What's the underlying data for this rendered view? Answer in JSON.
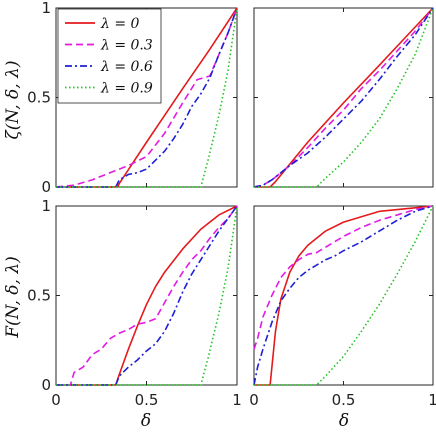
{
  "chart_data": [
    {
      "type": "line",
      "panel": "top-left",
      "ylabel": "ζ(N, δ, λ)",
      "xlabel": "",
      "xlim": [
        0,
        1
      ],
      "ylim": [
        0,
        1
      ],
      "xticks": [],
      "yticks": [
        "0",
        "0.5",
        "1"
      ],
      "legend": {
        "placement": "top-left",
        "entries": [
          "λ = 0",
          "λ = 0.3",
          "λ = 0.6",
          "λ = 0.9"
        ]
      },
      "series": [
        {
          "name": "λ = 0",
          "color": "#e41a1c",
          "style": "solid",
          "points": [
            [
              0,
              0
            ],
            [
              0.34,
              0
            ],
            [
              0.35,
              0.02
            ],
            [
              0.5,
              0.25
            ],
            [
              0.7,
              0.55
            ],
            [
              0.85,
              0.77
            ],
            [
              1,
              1
            ]
          ]
        },
        {
          "name": "λ = 0.3",
          "color": "#e31ae3",
          "style": "dashed",
          "points": [
            [
              0,
              0
            ],
            [
              0.1,
              0.01
            ],
            [
              0.2,
              0.04
            ],
            [
              0.3,
              0.08
            ],
            [
              0.4,
              0.12
            ],
            [
              0.5,
              0.17
            ],
            [
              0.6,
              0.3
            ],
            [
              0.7,
              0.47
            ],
            [
              0.78,
              0.6
            ],
            [
              0.85,
              0.62
            ],
            [
              0.9,
              0.74
            ],
            [
              0.95,
              0.86
            ],
            [
              1,
              1
            ]
          ]
        },
        {
          "name": "λ = 0.6",
          "color": "#1f1fd6",
          "style": "dashdot",
          "points": [
            [
              0,
              0
            ],
            [
              0.33,
              0
            ],
            [
              0.35,
              0.04
            ],
            [
              0.4,
              0.07
            ],
            [
              0.45,
              0.08
            ],
            [
              0.5,
              0.1
            ],
            [
              0.55,
              0.15
            ],
            [
              0.6,
              0.2
            ],
            [
              0.65,
              0.27
            ],
            [
              0.7,
              0.35
            ],
            [
              0.75,
              0.45
            ],
            [
              0.8,
              0.52
            ],
            [
              0.85,
              0.61
            ],
            [
              0.9,
              0.74
            ],
            [
              0.95,
              0.86
            ],
            [
              1,
              1
            ]
          ]
        },
        {
          "name": "λ = 0.9",
          "color": "#22c422",
          "style": "dotted",
          "points": [
            [
              0,
              0
            ],
            [
              0.8,
              0
            ],
            [
              0.84,
              0.15
            ],
            [
              0.9,
              0.4
            ],
            [
              0.95,
              0.65
            ],
            [
              1,
              1
            ]
          ]
        }
      ]
    },
    {
      "type": "line",
      "panel": "top-right",
      "xlim": [
        0,
        1
      ],
      "ylim": [
        0,
        1
      ],
      "series": [
        {
          "name": "λ = 0",
          "color": "#e41a1c",
          "style": "solid",
          "points": [
            [
              0,
              0
            ],
            [
              0.09,
              0
            ],
            [
              0.12,
              0.03
            ],
            [
              0.3,
              0.25
            ],
            [
              0.5,
              0.47
            ],
            [
              0.7,
              0.68
            ],
            [
              0.85,
              0.84
            ],
            [
              1,
              1
            ]
          ]
        },
        {
          "name": "λ = 0.3",
          "color": "#e31ae3",
          "style": "dashed",
          "points": [
            [
              0,
              0
            ],
            [
              0.05,
              0.01
            ],
            [
              0.1,
              0.04
            ],
            [
              0.2,
              0.12
            ],
            [
              0.3,
              0.22
            ],
            [
              0.4,
              0.33
            ],
            [
              0.5,
              0.43
            ],
            [
              0.6,
              0.55
            ],
            [
              0.7,
              0.65
            ],
            [
              0.8,
              0.76
            ],
            [
              0.9,
              0.87
            ],
            [
              1,
              1
            ]
          ]
        },
        {
          "name": "λ = 0.6",
          "color": "#1f1fd6",
          "style": "dashdot",
          "points": [
            [
              0,
              0
            ],
            [
              0.05,
              0.01
            ],
            [
              0.1,
              0.04
            ],
            [
              0.2,
              0.12
            ],
            [
              0.3,
              0.19
            ],
            [
              0.4,
              0.28
            ],
            [
              0.5,
              0.38
            ],
            [
              0.6,
              0.48
            ],
            [
              0.7,
              0.6
            ],
            [
              0.8,
              0.73
            ],
            [
              0.9,
              0.85
            ],
            [
              1,
              1
            ]
          ]
        },
        {
          "name": "λ = 0.9",
          "color": "#22c422",
          "style": "dotted",
          "points": [
            [
              0,
              0
            ],
            [
              0.35,
              0
            ],
            [
              0.4,
              0.05
            ],
            [
              0.5,
              0.14
            ],
            [
              0.6,
              0.25
            ],
            [
              0.7,
              0.38
            ],
            [
              0.8,
              0.55
            ],
            [
              0.9,
              0.74
            ],
            [
              1,
              1
            ]
          ]
        }
      ]
    },
    {
      "type": "line",
      "panel": "bottom-left",
      "ylabel": "F(N, δ, λ)",
      "xlabel": "δ",
      "xlim": [
        0,
        1
      ],
      "ylim": [
        0,
        1
      ],
      "xticks": [
        "0",
        "0.5",
        "1"
      ],
      "yticks": [
        "0",
        "0.5",
        "1"
      ],
      "series": [
        {
          "name": "λ = 0",
          "color": "#e41a1c",
          "style": "solid",
          "points": [
            [
              0,
              0
            ],
            [
              0.33,
              0
            ],
            [
              0.35,
              0.06
            ],
            [
              0.4,
              0.2
            ],
            [
              0.45,
              0.33
            ],
            [
              0.5,
              0.45
            ],
            [
              0.55,
              0.55
            ],
            [
              0.6,
              0.63
            ],
            [
              0.7,
              0.76
            ],
            [
              0.8,
              0.87
            ],
            [
              0.9,
              0.95
            ],
            [
              1,
              1
            ]
          ]
        },
        {
          "name": "λ = 0.3",
          "color": "#e31ae3",
          "style": "dashed",
          "points": [
            [
              0,
              0
            ],
            [
              0.08,
              0
            ],
            [
              0.1,
              0.07
            ],
            [
              0.15,
              0.1
            ],
            [
              0.2,
              0.17
            ],
            [
              0.25,
              0.2
            ],
            [
              0.3,
              0.26
            ],
            [
              0.35,
              0.29
            ],
            [
              0.4,
              0.31
            ],
            [
              0.45,
              0.34
            ],
            [
              0.5,
              0.35
            ],
            [
              0.55,
              0.37
            ],
            [
              0.6,
              0.46
            ],
            [
              0.65,
              0.55
            ],
            [
              0.7,
              0.63
            ],
            [
              0.75,
              0.7
            ],
            [
              0.8,
              0.75
            ],
            [
              0.85,
              0.82
            ],
            [
              0.9,
              0.88
            ],
            [
              0.95,
              0.93
            ],
            [
              1,
              1
            ]
          ]
        },
        {
          "name": "λ = 0.6",
          "color": "#1f1fd6",
          "style": "dashdot",
          "points": [
            [
              0,
              0
            ],
            [
              0.33,
              0
            ],
            [
              0.35,
              0.05
            ],
            [
              0.4,
              0.1
            ],
            [
              0.45,
              0.14
            ],
            [
              0.5,
              0.19
            ],
            [
              0.55,
              0.23
            ],
            [
              0.6,
              0.3
            ],
            [
              0.65,
              0.4
            ],
            [
              0.7,
              0.52
            ],
            [
              0.75,
              0.62
            ],
            [
              0.8,
              0.7
            ],
            [
              0.85,
              0.78
            ],
            [
              0.9,
              0.86
            ],
            [
              0.95,
              0.93
            ],
            [
              1,
              1
            ]
          ]
        },
        {
          "name": "λ = 0.9",
          "color": "#22c422",
          "style": "dotted",
          "points": [
            [
              0,
              0
            ],
            [
              0.8,
              0
            ],
            [
              0.84,
              0.15
            ],
            [
              0.9,
              0.4
            ],
            [
              0.95,
              0.65
            ],
            [
              1,
              1
            ]
          ]
        }
      ]
    },
    {
      "type": "line",
      "panel": "bottom-right",
      "xlabel": "δ",
      "xlim": [
        0,
        1
      ],
      "ylim": [
        0,
        1
      ],
      "xticks": [
        "0",
        "0.5",
        "1"
      ],
      "yticks": [],
      "series": [
        {
          "name": "λ = 0",
          "color": "#e41a1c",
          "style": "solid",
          "points": [
            [
              0,
              0
            ],
            [
              0.09,
              0
            ],
            [
              0.1,
              0.1
            ],
            [
              0.12,
              0.3
            ],
            [
              0.15,
              0.48
            ],
            [
              0.2,
              0.63
            ],
            [
              0.25,
              0.72
            ],
            [
              0.3,
              0.78
            ],
            [
              0.4,
              0.86
            ],
            [
              0.5,
              0.91
            ],
            [
              0.6,
              0.94
            ],
            [
              0.7,
              0.97
            ],
            [
              0.8,
              0.98
            ],
            [
              0.9,
              0.99
            ],
            [
              1,
              1
            ]
          ]
        },
        {
          "name": "λ = 0.3",
          "color": "#e31ae3",
          "style": "dashed",
          "points": [
            [
              0,
              0.2
            ],
            [
              0.02,
              0.26
            ],
            [
              0.05,
              0.38
            ],
            [
              0.1,
              0.5
            ],
            [
              0.15,
              0.6
            ],
            [
              0.2,
              0.66
            ],
            [
              0.25,
              0.7
            ],
            [
              0.3,
              0.73
            ],
            [
              0.35,
              0.74
            ],
            [
              0.4,
              0.77
            ],
            [
              0.45,
              0.8
            ],
            [
              0.5,
              0.83
            ],
            [
              0.6,
              0.88
            ],
            [
              0.7,
              0.92
            ],
            [
              0.8,
              0.95
            ],
            [
              0.9,
              0.98
            ],
            [
              1,
              1
            ]
          ]
        },
        {
          "name": "λ = 0.6",
          "color": "#1f1fd6",
          "style": "dashdot",
          "points": [
            [
              0,
              0
            ],
            [
              0.02,
              0.1
            ],
            [
              0.05,
              0.2
            ],
            [
              0.1,
              0.35
            ],
            [
              0.15,
              0.47
            ],
            [
              0.2,
              0.54
            ],
            [
              0.25,
              0.6
            ],
            [
              0.3,
              0.64
            ],
            [
              0.35,
              0.67
            ],
            [
              0.4,
              0.7
            ],
            [
              0.45,
              0.72
            ],
            [
              0.5,
              0.75
            ],
            [
              0.6,
              0.8
            ],
            [
              0.7,
              0.86
            ],
            [
              0.8,
              0.92
            ],
            [
              0.9,
              0.97
            ],
            [
              1,
              1
            ]
          ]
        },
        {
          "name": "λ = 0.9",
          "color": "#22c422",
          "style": "dotted",
          "points": [
            [
              0,
              0
            ],
            [
              0.35,
              0
            ],
            [
              0.4,
              0.05
            ],
            [
              0.5,
              0.16
            ],
            [
              0.6,
              0.3
            ],
            [
              0.7,
              0.45
            ],
            [
              0.8,
              0.62
            ],
            [
              0.9,
              0.8
            ],
            [
              1,
              1
            ]
          ]
        }
      ]
    }
  ]
}
